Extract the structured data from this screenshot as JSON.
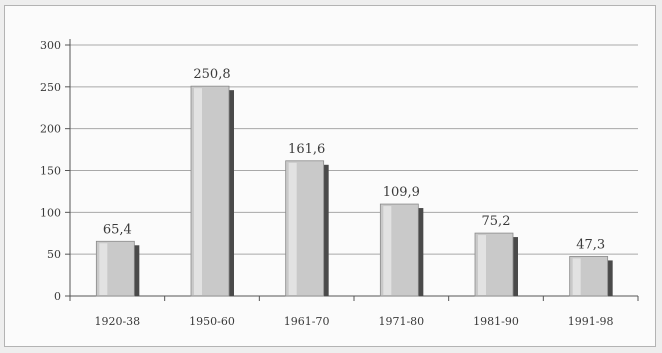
{
  "chart_data": {
    "type": "bar",
    "categories": [
      "1920-38",
      "1950-60",
      "1961-70",
      "1971-80",
      "1981-90",
      "1991-98"
    ],
    "values": [
      65.4,
      250.8,
      161.6,
      109.9,
      75.2,
      47.3
    ],
    "value_labels": [
      "65,4",
      "250,8",
      "161,6",
      "109,9",
      "75,2",
      "47,3"
    ],
    "yticks": [
      0,
      50,
      100,
      150,
      200,
      250,
      300
    ],
    "ylim": [
      0,
      300
    ],
    "grid": true,
    "legend": "none",
    "colors": {
      "bar_face": "#c9c9c9",
      "bar_highlight": "#e2e2e2",
      "bar_shadow": "#4a4a4a",
      "grid": "#a8a8a8",
      "axis": "#555555"
    }
  }
}
